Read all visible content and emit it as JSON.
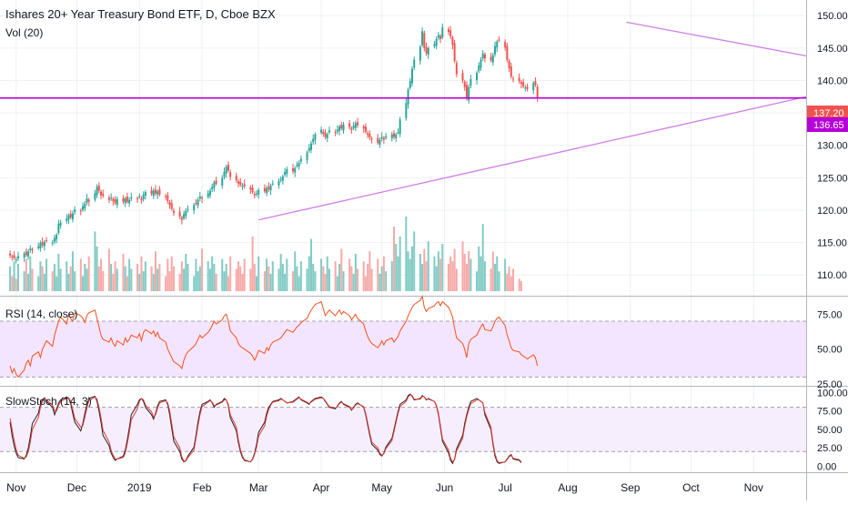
{
  "legend": {
    "title": "Ishares 20+ Year Treasury Bond ETF, D, Cboe BZX",
    "volume": "Vol (20)",
    "rsi": "RSI (14, close)",
    "stoch": "SlowStoch (14, 3)"
  },
  "colors": {
    "up": "#26a69a",
    "down": "#ef5350",
    "volume_up": "#80cbc4",
    "volume_down": "#f7a9a7",
    "trendline": "#d07ee6",
    "hline": "#b400d6",
    "rsi_line": "#f4511e",
    "rsi_band": "#f3e5ff",
    "stoch_k": "#212121",
    "stoch_d": "#e53935",
    "grid": "#eef0f4"
  },
  "chart_data": [
    {
      "type": "candlestick",
      "name": "price",
      "title": "Ishares 20+ Year Treasury Bond ETF, D, Cboe BZX",
      "ylim": [
        107.5,
        152
      ],
      "y_ticks": [
        110,
        115,
        120,
        125,
        130,
        135,
        140,
        145,
        150
      ],
      "y_tick_labels": [
        "110.00",
        "115.00",
        "120.00",
        "125.00",
        "130.00",
        "135.00",
        "140.00",
        "145.00",
        "150.00"
      ],
      "price_labels": [
        {
          "value": 137.2,
          "label": "137.20",
          "color": "#ef5350"
        },
        {
          "value": 136.65,
          "label": "136.65",
          "color": "#b400d6"
        }
      ],
      "x_ticks": [
        "Nov",
        "Dec",
        "2019",
        "Feb",
        "Mar",
        "Apr",
        "May",
        "Jun",
        "Jul",
        "Aug",
        "Sep",
        "Oct",
        "Nov"
      ],
      "x_tick_dates": [
        "2018-11-01",
        "2018-12-01",
        "2019-01-01",
        "2019-02-01",
        "2019-03-01",
        "2019-04-01",
        "2019-05-01",
        "2019-06-01",
        "2019-07-01",
        "2019-08-01",
        "2019-09-01",
        "2019-10-01",
        "2019-11-01"
      ],
      "x_start": "2018-10-24",
      "x_end": "2019-11-27",
      "closes": [
        113.0,
        112.8,
        112.6,
        112.4,
        112.9,
        113.3,
        113.1,
        113.6,
        114.1,
        113.9,
        114.4,
        114.9,
        114.6,
        115.1,
        115.3,
        115.0,
        115.7,
        116.2,
        117.9,
        118.1,
        118.7,
        119.2,
        118.9,
        119.5,
        120.1,
        119.8,
        120.6,
        121.0,
        121.8,
        121.3,
        122.6,
        123.6,
        123.0,
        122.3,
        122.2,
        121.6,
        121.9,
        121.4,
        121.1,
        121.7,
        121.3,
        121.8,
        121.3,
        121.6,
        122.0,
        121.8,
        122.1,
        121.5,
        122.4,
        122.8,
        122.5,
        123.0,
        122.6,
        122.9,
        122.4,
        122.1,
        121.4,
        120.8,
        120.2,
        119.6,
        119.0,
        118.5,
        119.4,
        119.9,
        120.2,
        120.8,
        121.0,
        121.6,
        122.1,
        121.8,
        122.6,
        123.0,
        123.6,
        124.3,
        124.1,
        125.0,
        125.9,
        126.7,
        126.1,
        125.1,
        124.6,
        124.1,
        123.9,
        123.8,
        123.7,
        123.2,
        122.8,
        122.3,
        122.6,
        123.1,
        122.9,
        123.4,
        123.2,
        123.8,
        124.1,
        124.5,
        124.7,
        125.2,
        125.9,
        126.3,
        126.0,
        126.5,
        127.0,
        127.3,
        127.9,
        128.9,
        129.6,
        130.3,
        131.0,
        131.7,
        132.4,
        131.8,
        131.3,
        131.7,
        132.3,
        131.9,
        132.4,
        132.9,
        132.6,
        133.2,
        132.8,
        132.4,
        133.0,
        133.4,
        133.1,
        132.6,
        132.1,
        131.6,
        131.2,
        130.9,
        130.4,
        130.8,
        131.3,
        130.9,
        131.4,
        131.7,
        131.3,
        131.7,
        132.0,
        134.0,
        136.5,
        138.6,
        139.9,
        141.8,
        143.2,
        145.2,
        147.6,
        145.0,
        144.2,
        145.0,
        145.6,
        146.4,
        147.0,
        146.4,
        148.2,
        147.5,
        146.8,
        145.5,
        143.0,
        141.0,
        140.0,
        139.0,
        137.2,
        139.0,
        140.2,
        141.2,
        142.3,
        143.2,
        144.2,
        143.4,
        143.1,
        143.9,
        145.3,
        146.0,
        146.2,
        145.1,
        143.2,
        141.9,
        140.6,
        140.2,
        139.9,
        139.5,
        139.1,
        138.9,
        138.7,
        139.6,
        139.3,
        137.2
      ],
      "open_offsets": [
        0.4,
        -0.3,
        0.5,
        -0.6,
        0.3,
        -0.4,
        0.6,
        -0.5,
        0.4,
        -0.3,
        0.5,
        -0.6
      ],
      "high_offsets": [
        0.5,
        0.3,
        0.6,
        0.4,
        0.7,
        0.3,
        0.5,
        0.4
      ],
      "low_offsets": [
        0.4,
        0.6,
        0.3,
        0.5,
        0.4,
        0.7,
        0.3,
        0.5
      ]
    },
    {
      "type": "bar",
      "name": "volume",
      "title": "Vol (20)",
      "values": [
        5.0,
        3.0,
        6.0,
        2.5,
        5.5,
        4.0,
        6.5,
        3.5,
        7.0,
        4.5,
        3.0,
        6.0,
        5.0,
        3.5,
        6.5,
        4.0,
        5.5,
        3.0,
        7.5,
        4.5,
        6.0,
        3.5,
        5.0,
        8.0,
        4.0,
        6.5,
        3.0,
        5.5,
        4.5,
        7.0,
        12.0,
        9.0,
        5.0,
        6.5,
        4.0,
        8.5,
        5.5,
        3.5,
        6.0,
        4.5,
        7.5,
        5.0,
        3.0,
        6.5,
        4.5,
        5.5,
        3.5,
        7.0,
        4.0,
        6.0,
        5.0,
        3.5,
        8.0,
        4.5,
        5.5,
        3.0,
        6.5,
        4.0,
        7.0,
        5.0,
        3.5,
        6.0,
        4.5,
        7.5,
        5.5,
        3.0,
        6.5,
        4.0,
        5.0,
        8.5,
        6.0,
        4.5,
        7.0,
        5.5,
        3.5,
        6.5,
        4.0,
        5.5,
        3.0,
        7.0,
        4.5,
        6.0,
        5.0,
        3.5,
        6.5,
        4.5,
        11.0,
        5.5,
        3.0,
        7.0,
        4.0,
        6.5,
        5.0,
        3.5,
        6.0,
        4.5,
        7.5,
        5.5,
        3.5,
        6.5,
        4.0,
        8.0,
        5.0,
        3.0,
        6.0,
        4.5,
        7.0,
        10.5,
        5.5,
        4.0,
        6.5,
        5.0,
        3.5,
        7.0,
        4.5,
        6.0,
        3.0,
        5.5,
        8.5,
        4.0,
        6.5,
        5.0,
        3.5,
        7.5,
        4.5,
        6.0,
        3.0,
        5.5,
        8.0,
        4.5,
        6.5,
        3.5,
        5.0,
        7.0,
        4.0,
        6.0,
        13.0,
        9.5,
        7.0,
        11.0,
        15.0,
        8.0,
        6.5,
        9.0,
        12.0,
        7.5,
        5.5,
        8.5,
        6.0,
        10.0,
        7.0,
        5.0,
        8.0,
        6.5,
        9.5,
        5.5,
        7.0,
        6.0,
        8.5,
        4.5,
        10.0,
        7.5,
        5.5,
        8.0,
        6.5,
        4.0,
        9.0,
        7.0,
        13.5,
        6.0,
        4.5,
        8.0,
        5.5,
        7.0,
        4.0,
        6.5,
        3.5,
        5.0,
        3.0,
        4.5,
        2.5,
        2.0
      ],
      "up": [
        1,
        0,
        1,
        0,
        1,
        1,
        0,
        1,
        1,
        0,
        1,
        1,
        0,
        1,
        1,
        0,
        1,
        1,
        1,
        1,
        1,
        1,
        0,
        1,
        1,
        0,
        1,
        1,
        1,
        0,
        1,
        1,
        0,
        0,
        0,
        0,
        1,
        0,
        0,
        1,
        0,
        1,
        0,
        1,
        1,
        0,
        1,
        0,
        1,
        1,
        0,
        1,
        0,
        1,
        0,
        0,
        0,
        0,
        0,
        0,
        0,
        0,
        1,
        1,
        1,
        1,
        1,
        1,
        1,
        0,
        1,
        1,
        1,
        1,
        0,
        1,
        1,
        1,
        0,
        0,
        0,
        0,
        0,
        0,
        0,
        0,
        0,
        0,
        1,
        1,
        0,
        1,
        0,
        1,
        1,
        1,
        1,
        1,
        1,
        1,
        0,
        1,
        1,
        1,
        1,
        1,
        1,
        1,
        1,
        1,
        1,
        0,
        0,
        1,
        1,
        0,
        1,
        1,
        0,
        1,
        0,
        0,
        1,
        1,
        0,
        0,
        0,
        0,
        0,
        0,
        0,
        1,
        1,
        0,
        1,
        1,
        0,
        1,
        1,
        1,
        1,
        1,
        1,
        1,
        1,
        1,
        1,
        0,
        0,
        1,
        1,
        1,
        1,
        0,
        1,
        0,
        0,
        0,
        0,
        0,
        0,
        0,
        0,
        0,
        1,
        1,
        1,
        1,
        1,
        1,
        0,
        0,
        1,
        1,
        1,
        1,
        0,
        0,
        0,
        0,
        0,
        0,
        0,
        0,
        0,
        0,
        1,
        0,
        0
      ]
    },
    {
      "type": "line",
      "name": "rsi",
      "title": "RSI (14, close)",
      "ylim": [
        25,
        85
      ],
      "y_ticks": [
        25,
        50,
        75
      ],
      "y_tick_labels": [
        "25.00",
        "50.00",
        "75.00"
      ],
      "band": [
        30,
        70
      ],
      "values": [
        38,
        33,
        36,
        32,
        30,
        35,
        40,
        42,
        38,
        45,
        48,
        44,
        50,
        53,
        56,
        52,
        60,
        65,
        70,
        73,
        68,
        75,
        72,
        70,
        76,
        74,
        72,
        69,
        74,
        76,
        78,
        72,
        66,
        60,
        57,
        55,
        58,
        54,
        52,
        56,
        53,
        58,
        55,
        57,
        60,
        58,
        61,
        56,
        62,
        64,
        61,
        63,
        59,
        62,
        58,
        55,
        50,
        47,
        44,
        41,
        38,
        36,
        42,
        46,
        48,
        52,
        54,
        57,
        60,
        58,
        62,
        64,
        67,
        70,
        68,
        71,
        74,
        75,
        70,
        63,
        58,
        54,
        52,
        51,
        50,
        47,
        45,
        42,
        45,
        49,
        47,
        51,
        49,
        53,
        55,
        57,
        58,
        60,
        62,
        64,
        62,
        64,
        66,
        67,
        69,
        72,
        75,
        78,
        80,
        82,
        84,
        79,
        74,
        76,
        78,
        74,
        76,
        78,
        75,
        77,
        74,
        71,
        73,
        75,
        72,
        68,
        63,
        59,
        56,
        54,
        51,
        53,
        56,
        53,
        56,
        58,
        55,
        57,
        59,
        63,
        70,
        74,
        77,
        80,
        82,
        85,
        88,
        80,
        77,
        79,
        81,
        83,
        84,
        81,
        84,
        80,
        77,
        73,
        65,
        58,
        54,
        50,
        44,
        54,
        57,
        60,
        63,
        66,
        68,
        64,
        63,
        66,
        70,
        72,
        73,
        67,
        60,
        56,
        51,
        49,
        48,
        46,
        45,
        44,
        43,
        46,
        44,
        38
      ]
    },
    {
      "type": "line",
      "name": "slow_stochastic",
      "title": "SlowStoch (14, 3)",
      "ylim": [
        -8,
        103
      ],
      "y_ticks": [
        0,
        25,
        50,
        75,
        100
      ],
      "y_tick_labels": [
        "0.00",
        "25.00",
        "50.00",
        "75.00",
        "100.00"
      ],
      "band": [
        20,
        80
      ],
      "series": [
        {
          "name": "K",
          "values": [
            60,
            42,
            28,
            18,
            12,
            10,
            15,
            25,
            40,
            58,
            72,
            84,
            90,
            93,
            88,
            80,
            70,
            78,
            86,
            90,
            94,
            92,
            85,
            72,
            60,
            48,
            58,
            72,
            84,
            92,
            95,
            88,
            75,
            60,
            42,
            28,
            18,
            12,
            8,
            10,
            14,
            22,
            36,
            52,
            70,
            84,
            90,
            92,
            88,
            80,
            70,
            64,
            72,
            82,
            88,
            90,
            84,
            70,
            52,
            34,
            20,
            10,
            6,
            8,
            14,
            26,
            42,
            60,
            74,
            84,
            88,
            90,
            86,
            80,
            84,
            88,
            92,
            90,
            82,
            66,
            48,
            32,
            20,
            12,
            8,
            6,
            10,
            18,
            30,
            46,
            60,
            72,
            80,
            84,
            88,
            90,
            92,
            90,
            88,
            86,
            88,
            90,
            92,
            94,
            90,
            86,
            84,
            88,
            90,
            92,
            94,
            92,
            88,
            84,
            80,
            78,
            82,
            86,
            88,
            84,
            80,
            76,
            80,
            84,
            86,
            80,
            70,
            56,
            42,
            30,
            22,
            16,
            14,
            18,
            26,
            38,
            50,
            62,
            74,
            84,
            90,
            96,
            98,
            95,
            90,
            92,
            96,
            94,
            90,
            92,
            88,
            82,
            70,
            52,
            34,
            18,
            8,
            4,
            10,
            24,
            42,
            58,
            70,
            80,
            88,
            92,
            90,
            88,
            86,
            70,
            50,
            30,
            14,
            6,
            4,
            6,
            10,
            14,
            16,
            10,
            8,
            5
          ]
        },
        {
          "name": "D",
          "values": [
            65,
            50,
            35,
            23,
            15,
            11,
            13,
            20,
            33,
            50,
            66,
            80,
            88,
            92,
            90,
            83,
            75,
            75,
            83,
            88,
            92,
            93,
            88,
            77,
            65,
            53,
            55,
            67,
            79,
            89,
            94,
            91,
            80,
            66,
            49,
            33,
            22,
            15,
            10,
            10,
            12,
            18,
            31,
            46,
            63,
            78,
            88,
            92,
            90,
            83,
            74,
            67,
            70,
            79,
            86,
            89,
            86,
            75,
            58,
            40,
            25,
            13,
            7,
            7,
            12,
            22,
            38,
            55,
            70,
            81,
            87,
            89,
            87,
            82,
            83,
            87,
            90,
            90,
            84,
            70,
            53,
            36,
            23,
            14,
            9,
            6,
            9,
            16,
            26,
            41,
            55,
            68,
            77,
            83,
            87,
            89,
            91,
            90,
            88,
            86,
            87,
            89,
            91,
            93,
            91,
            87,
            85,
            87,
            89,
            91,
            93,
            92,
            89,
            85,
            81,
            79,
            81,
            85,
            87,
            85,
            81,
            77,
            79,
            83,
            85,
            81,
            72,
            59,
            45,
            33,
            25,
            18,
            15,
            17,
            24,
            35,
            47,
            59,
            71,
            81,
            88,
            94,
            97,
            96,
            91,
            91,
            95,
            94,
            91,
            91,
            88,
            83,
            72,
            55,
            37,
            22,
            11,
            6,
            9,
            21,
            38,
            54,
            67,
            77,
            85,
            90,
            90,
            88,
            86,
            73,
            53,
            33,
            17,
            8,
            5,
            6,
            9,
            13,
            15,
            11,
            9,
            6
          ]
        }
      ]
    }
  ],
  "trendlines": [
    {
      "from": [
        "2019-03-01",
        118.5
      ],
      "to": [
        "2019-11-27",
        137.5
      ]
    },
    {
      "from": [
        "2019-08-30",
        149.0
      ],
      "to": [
        "2019-11-27",
        143.8
      ]
    }
  ],
  "hlines": [
    137.3
  ]
}
